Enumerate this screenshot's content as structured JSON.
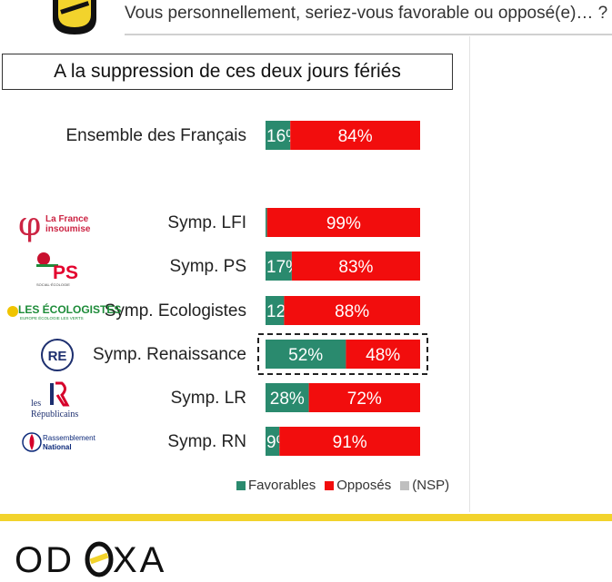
{
  "header": {
    "question": "Vous personnellement, seriez-vous favorable ou opposé(e)… ?"
  },
  "chart_data": {
    "type": "bar",
    "stacked": true,
    "orientation": "horizontal",
    "title": "A la suppression de ces deux jours fériés",
    "categories": [
      "Ensemble des Français",
      "Symp. LFI",
      "Symp. PS",
      "Symp. Ecologistes",
      "Symp. Renaissance",
      "Symp. LR",
      "Symp. RN"
    ],
    "series": [
      {
        "name": "Favorables",
        "color": "#2a8a6e",
        "values": [
          16,
          1,
          17,
          12,
          52,
          28,
          9
        ]
      },
      {
        "name": "Opposés",
        "color": "#f20d0d",
        "values": [
          84,
          99,
          83,
          88,
          48,
          72,
          91
        ]
      },
      {
        "name": "(NSP)",
        "color": "#bfbfbf",
        "values": [
          0,
          0,
          0,
          0,
          0,
          0,
          0
        ]
      }
    ],
    "value_suffix": "%",
    "xlim": [
      0,
      100
    ],
    "highlight": "Symp. Renaissance",
    "party_logos": [
      {
        "category": "Symp. LFI",
        "icon": "lfi-logo-icon",
        "line1": "La France",
        "line2": "insoumise",
        "color": "#cc2443"
      },
      {
        "category": "Symp. PS",
        "icon": "ps-logo-icon",
        "line1": "PS",
        "line2": "SOCIAL·ÉCOLOGIE",
        "color": "#e4032e"
      },
      {
        "category": "Symp. Ecologistes",
        "icon": "ecologistes-logo-icon",
        "line1": "LES ÉCOLOGISTES",
        "line2": "EUROPE ÉCOLOGIE LES VERTS",
        "color": "#1e8c3a"
      },
      {
        "category": "Symp. Renaissance",
        "icon": "renaissance-logo-icon",
        "line1": "RE",
        "line2": "",
        "color": "#1d2f6f"
      },
      {
        "category": "Symp. LR",
        "icon": "lr-logo-icon",
        "line1": "les",
        "line2": "Républicains",
        "color": "#1d2f6f"
      },
      {
        "category": "Symp. RN",
        "icon": "rn-logo-icon",
        "line1": "Rassemblement",
        "line2": "National",
        "color": "#0d2a7a"
      }
    ],
    "legend": {
      "position": "bottom-right"
    }
  },
  "footer": {
    "brand": "ODOXA",
    "accent": "#f2d32c"
  }
}
